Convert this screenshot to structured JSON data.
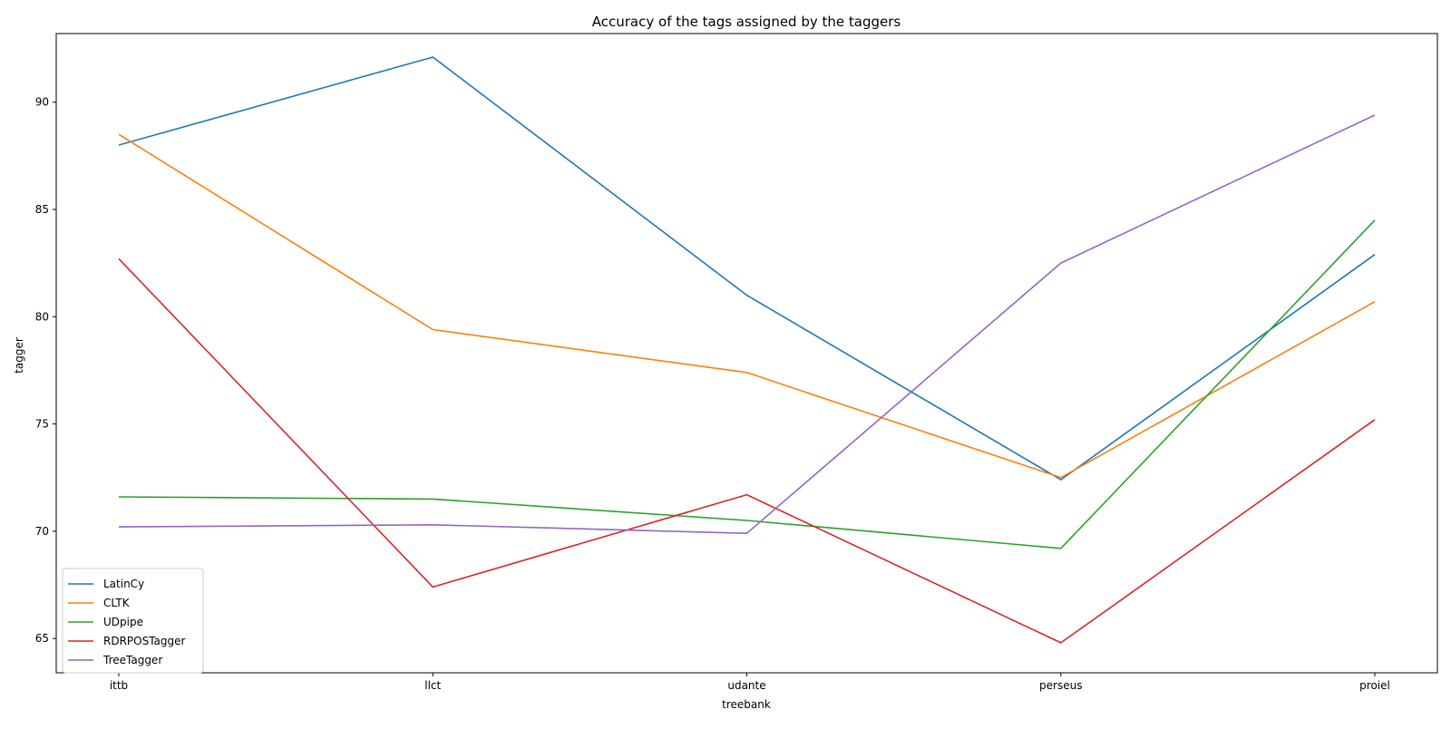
{
  "chart_data": {
    "type": "line",
    "title": "Accuracy of the tags assigned by the taggers",
    "xlabel": "treebank",
    "ylabel": "tagger",
    "categories": [
      "ittb",
      "llct",
      "udante",
      "perseus",
      "proiel"
    ],
    "ylim": [
      63.4,
      93.2
    ],
    "yticks": [
      65,
      70,
      75,
      80,
      85,
      90
    ],
    "grid": false,
    "legend_position": "lower-left",
    "series": [
      {
        "name": "LatinCy",
        "color": "#1f77b4",
        "values": [
          88.0,
          92.1,
          81.0,
          72.4,
          82.9
        ]
      },
      {
        "name": "CLTK",
        "color": "#ff7f0e",
        "values": [
          88.5,
          79.4,
          77.4,
          72.5,
          80.7
        ]
      },
      {
        "name": "UDpipe",
        "color": "#2ca02c",
        "values": [
          71.6,
          71.5,
          70.5,
          69.2,
          84.5
        ]
      },
      {
        "name": "RDRPOSTagger",
        "color": "#d62728",
        "values": [
          82.7,
          67.4,
          71.7,
          64.8,
          75.2
        ]
      },
      {
        "name": "TreeTagger",
        "color": "#9467bd",
        "values": [
          70.2,
          70.3,
          69.9,
          82.5,
          89.4
        ]
      }
    ]
  }
}
